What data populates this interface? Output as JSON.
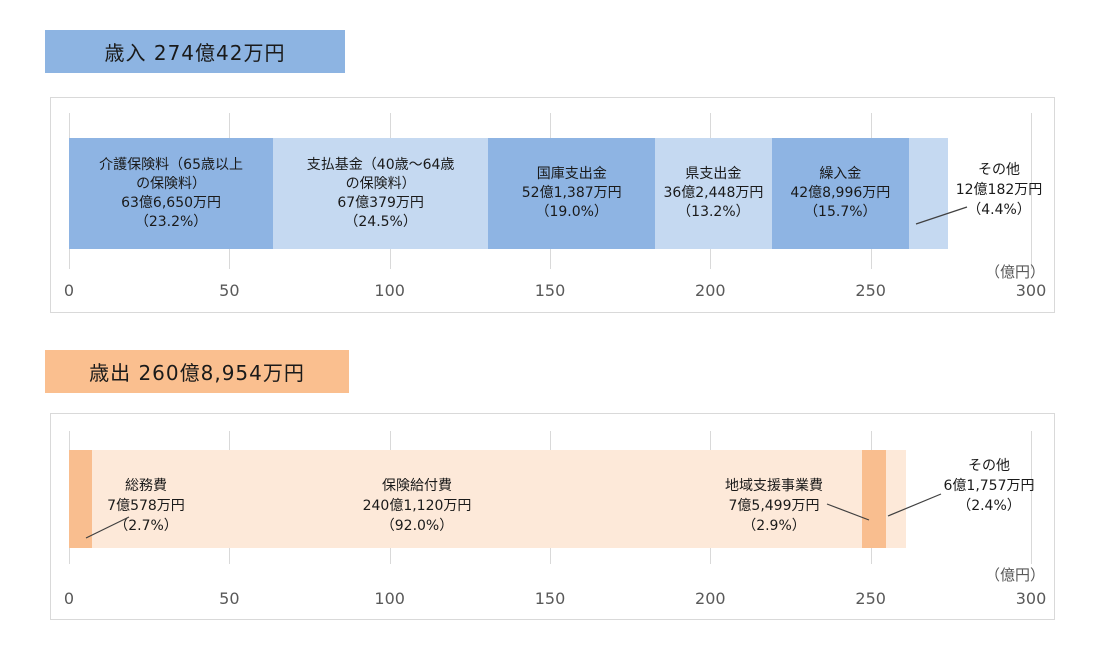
{
  "chart_data": [
    {
      "id": "revenue",
      "type": "bar",
      "stacked": true,
      "orientation": "horizontal",
      "title": "歳入 274億42万円",
      "total_value": 274.0042,
      "axis_unit": "（億円）",
      "axis_ticks": [
        "0",
        "50",
        "100",
        "150",
        "200",
        "250",
        "300"
      ],
      "xlim": [
        0,
        300
      ],
      "grid": "vertical-on",
      "colors": {
        "dark": "#8EB4E3",
        "light": "#C5D9F1",
        "title_bg": "#8DB4E2"
      },
      "series": [
        {
          "name": "介護保険料（65歳以上の保険料）",
          "name_lines": [
            "介護保険料（65歳以上",
            "の保険料）"
          ],
          "amount_label": "63億6,650万円",
          "percent_label": "（23.2%）",
          "value": 63.665,
          "shade": "dark",
          "label_placement": "inside"
        },
        {
          "name": "支払基金（40歳～64歳の保険料）",
          "name_lines": [
            "支払基金（40歳～64歳",
            "の保険料）"
          ],
          "amount_label": "67億379万円",
          "percent_label": "（24.5%）",
          "value": 67.0379,
          "shade": "light",
          "label_placement": "inside"
        },
        {
          "name": "国庫支出金",
          "name_lines": [
            "国庫支出金"
          ],
          "amount_label": "52億1,387万円",
          "percent_label": "（19.0%）",
          "value": 52.1387,
          "shade": "dark",
          "label_placement": "inside"
        },
        {
          "name": "県支出金",
          "name_lines": [
            "県支出金"
          ],
          "amount_label": "36億2,448万円",
          "percent_label": "（13.2%）",
          "value": 36.2448,
          "shade": "light",
          "label_placement": "inside"
        },
        {
          "name": "繰入金",
          "name_lines": [
            "繰入金"
          ],
          "amount_label": "42億8,996万円",
          "percent_label": "（15.7%）",
          "value": 42.8996,
          "shade": "dark",
          "label_placement": "inside"
        },
        {
          "name": "その他",
          "name_lines": [
            "その他"
          ],
          "amount_label": "12億182万円",
          "percent_label": "（4.4%）",
          "value": 12.0182,
          "shade": "light",
          "label_placement": "outside"
        }
      ]
    },
    {
      "id": "expenditure",
      "type": "bar",
      "stacked": true,
      "orientation": "horizontal",
      "title": "歳出 260億8,954万円",
      "total_value": 260.8954,
      "axis_unit": "（億円）",
      "axis_ticks": [
        "0",
        "50",
        "100",
        "150",
        "200",
        "250",
        "300"
      ],
      "xlim": [
        0,
        300
      ],
      "grid": "vertical-on",
      "colors": {
        "dark": "#F9BE8F",
        "light": "#FDE9D9",
        "title_bg": "#FABF8F"
      },
      "series": [
        {
          "name": "総務費",
          "name_lines": [
            "総務費"
          ],
          "amount_label": "7億578万円",
          "percent_label": "（2.7%）",
          "value": 7.0578,
          "shade": "dark",
          "label_placement": "float"
        },
        {
          "name": "保険給付費",
          "name_lines": [
            "保険給付費"
          ],
          "amount_label": "240億1,120万円",
          "percent_label": "（92.0%）",
          "value": 240.112,
          "shade": "light",
          "label_placement": "float"
        },
        {
          "name": "地域支援事業費",
          "name_lines": [
            "地域支援事業費"
          ],
          "amount_label": "7億5,499万円",
          "percent_label": "（2.9%）",
          "value": 7.5499,
          "shade": "dark",
          "label_placement": "float"
        },
        {
          "name": "その他",
          "name_lines": [
            "その他"
          ],
          "amount_label": "6億1,757万円",
          "percent_label": "（2.4%）",
          "value": 6.1757,
          "shade": "light",
          "label_placement": "outside"
        }
      ]
    }
  ]
}
